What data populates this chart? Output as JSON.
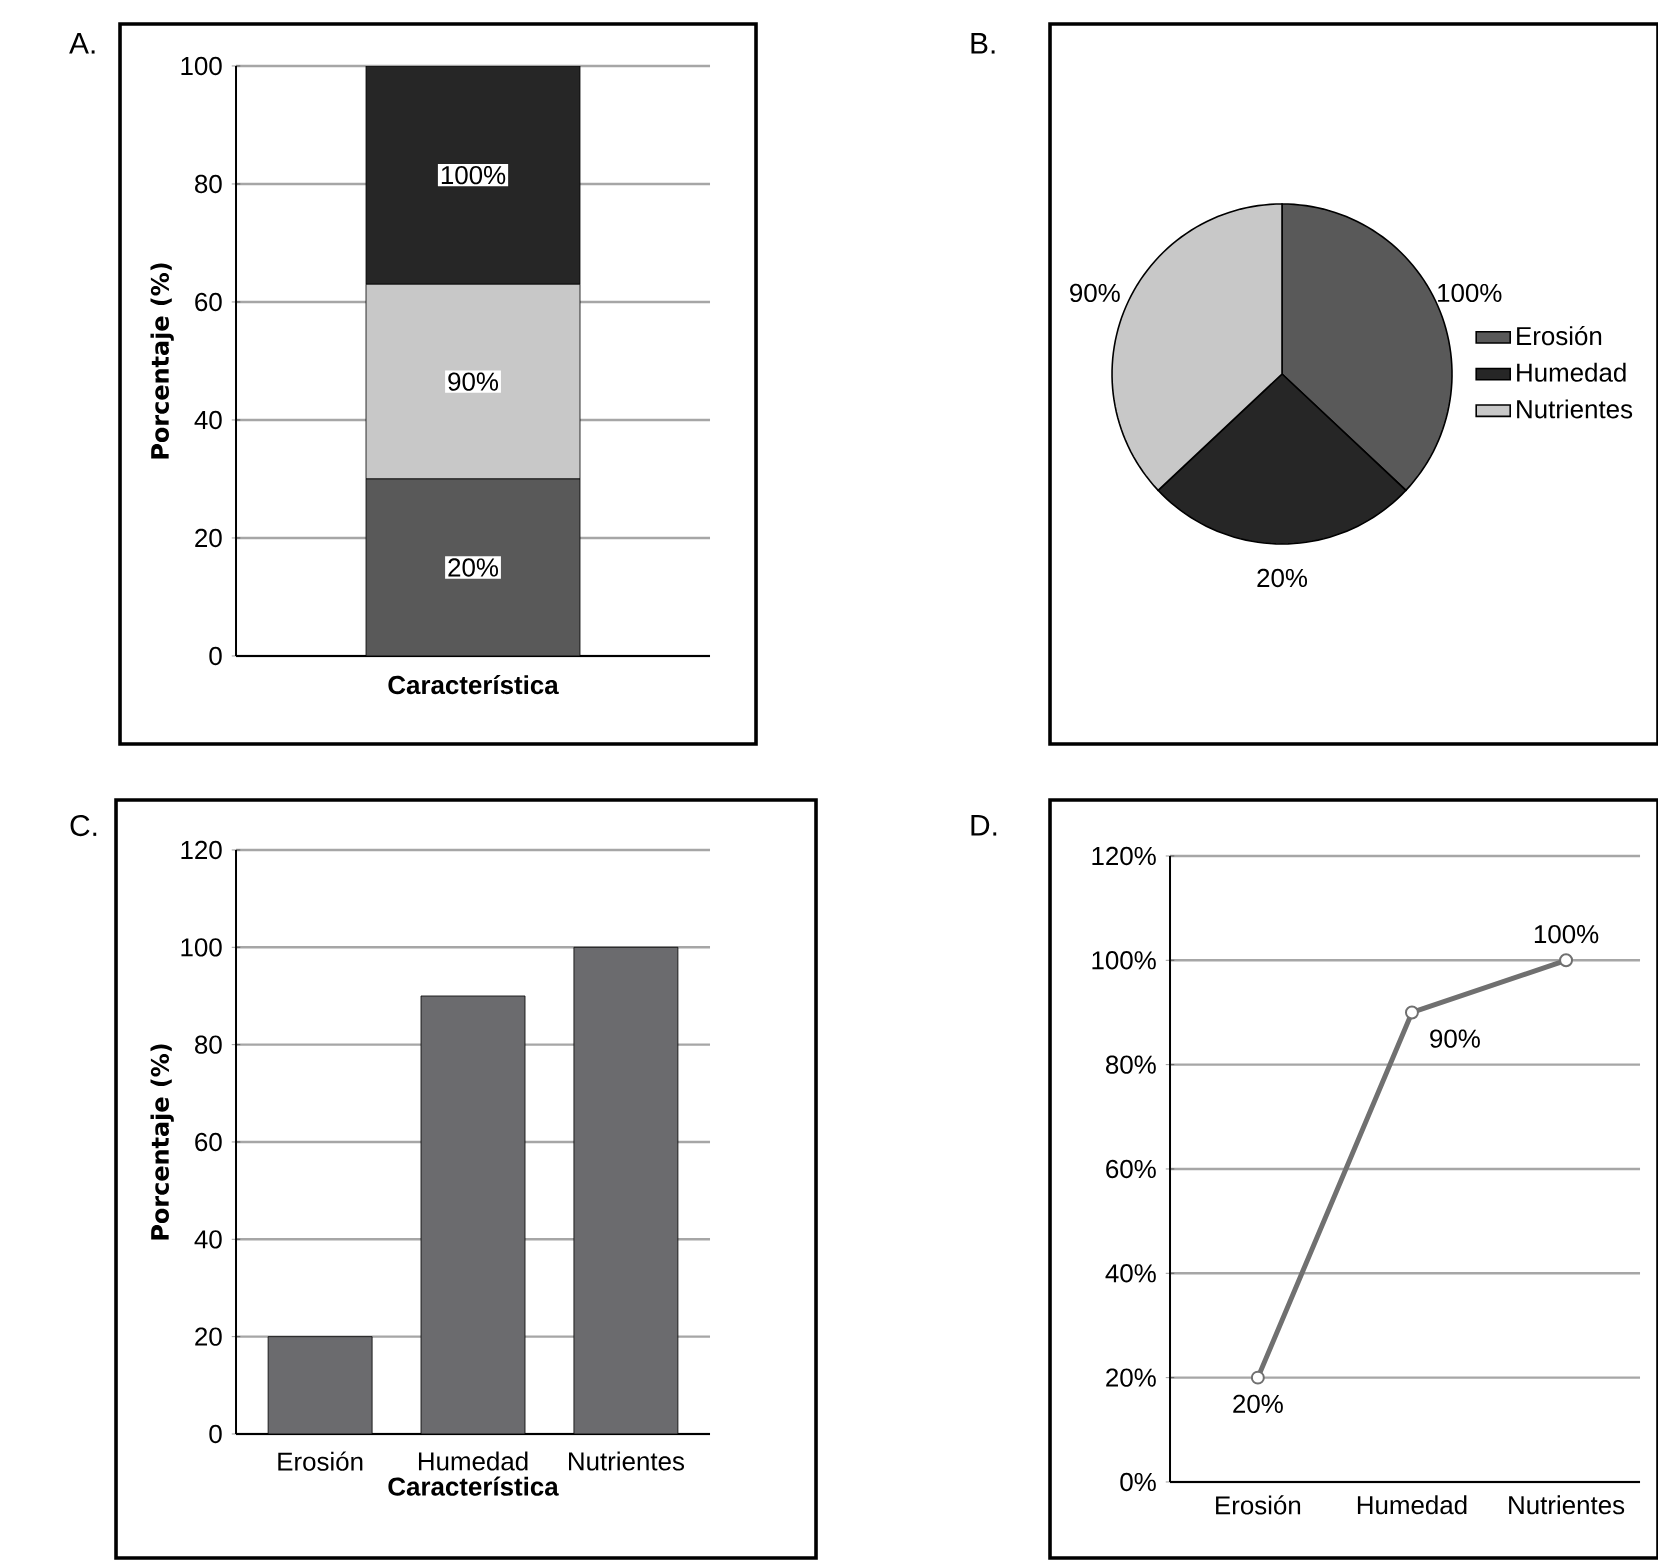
{
  "chart_data": [
    {
      "type": "bar",
      "title": "A.",
      "xlabel": "Característica",
      "ylabel": "Porcentaje (%)",
      "categories": [
        null
      ],
      "stacked": true,
      "series": [
        {
          "color": "#595959",
          "values": [
            30
          ]
        },
        {
          "color": "#c8c8c8",
          "values": [
            33
          ]
        },
        {
          "color": "#262626",
          "values": [
            37
          ]
        }
      ],
      "annotations": [
        {
          "text": "20%",
          "y": 15
        },
        {
          "text": "90%",
          "y": 46.5
        },
        {
          "text": "100%",
          "y": 81.5
        }
      ],
      "ylim": [
        0,
        100
      ],
      "yticks": [
        0,
        20,
        40,
        60,
        80,
        100
      ],
      "grid": "y"
    },
    {
      "type": "pie",
      "title": "B.",
      "categories": [
        "Erosión",
        "Humedad",
        "Nutrientes"
      ],
      "values": [
        37,
        26,
        37
      ],
      "annotations": [
        "100%",
        "20%",
        "90%"
      ],
      "colors": [
        "#595959",
        "#262626",
        "#c8c8c8"
      ],
      "legend": "right"
    },
    {
      "type": "bar",
      "title": "C.",
      "xlabel": "Característica",
      "ylabel": "Porcentaje (%)",
      "categories": [
        "Erosión",
        "Humedad",
        "Nutrientes"
      ],
      "values": [
        20,
        90,
        100
      ],
      "color": "#6b6b6e",
      "ylim": [
        0,
        120
      ],
      "yticks": [
        0,
        20,
        40,
        60,
        80,
        100,
        120
      ],
      "grid": "y"
    },
    {
      "type": "line",
      "title": "D.",
      "categories": [
        "Erosión",
        "Humedad",
        "Nutrientes"
      ],
      "values": [
        20,
        90,
        100
      ],
      "value_labels": [
        "20%",
        "90%",
        "100%"
      ],
      "color": "#707070",
      "marker": "circle",
      "ylim": [
        0,
        120
      ],
      "yticks": [
        {
          "value": 0,
          "label": "0%"
        },
        {
          "value": 20,
          "label": "20%"
        },
        {
          "value": 40,
          "label": "40%"
        },
        {
          "value": 60,
          "label": "60%"
        },
        {
          "value": 80,
          "label": "80%"
        },
        {
          "value": 100,
          "label": "100%"
        },
        {
          "value": 120,
          "label": "120%"
        }
      ],
      "grid": "y"
    }
  ]
}
